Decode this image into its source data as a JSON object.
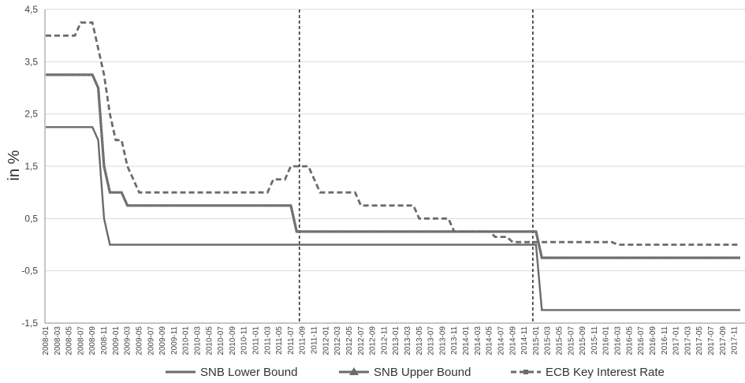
{
  "chart_data": {
    "type": "line",
    "title": "",
    "xlabel": "",
    "ylabel": "in %",
    "ylim": [
      -1.5,
      4.5
    ],
    "yticks": [
      -1.5,
      -0.5,
      0.5,
      1.5,
      2.5,
      3.5,
      4.5
    ],
    "ytick_labels": [
      "-1,5",
      "-0,5",
      "0,5",
      "1,5",
      "2,5",
      "3,5",
      "4,5"
    ],
    "xtick_labels": [
      "2008-01",
      "2008-03",
      "2008-05",
      "2008-07",
      "2008-09",
      "2008-11",
      "2009-01",
      "2009-03",
      "2009-05",
      "2009-07",
      "2009-09",
      "2009-11",
      "2010-01",
      "2010-03",
      "2010-05",
      "2010-07",
      "2010-09",
      "2010-11",
      "2011-01",
      "2011-03",
      "2011-05",
      "2011-07",
      "2011-09",
      "2011-11",
      "2012-01",
      "2012-03",
      "2012-05",
      "2012-07",
      "2012-09",
      "2012-11",
      "2013-01",
      "2013-03",
      "2013-05",
      "2013-07",
      "2013-09",
      "2013-11",
      "2014-01",
      "2014-03",
      "2014-05",
      "2014-07",
      "2014-09",
      "2014-11",
      "2015-01",
      "2015-03",
      "2015-05",
      "2015-07",
      "2015-09",
      "2015-11",
      "2016-01",
      "2016-03",
      "2016-05",
      "2016-07",
      "2016-09",
      "2016-11",
      "2017-01",
      "2017-03",
      "2017-05",
      "2017-07",
      "2017-09",
      "2017-11"
    ],
    "grid": "horizontal",
    "legend_position": "bottom",
    "vertical_markers": [
      "2011-09",
      "2015-01"
    ],
    "series": [
      {
        "name": "SNB Lower Bound",
        "style": "solid",
        "color": "#6b6b6b",
        "points": [
          [
            "2008-01",
            2.25
          ],
          [
            "2008-09",
            2.25
          ],
          [
            "2008-10",
            2.0
          ],
          [
            "2008-11",
            0.5
          ],
          [
            "2008-12",
            0.0
          ],
          [
            "2015-01",
            0.0
          ],
          [
            "2015-02",
            -1.25
          ],
          [
            "2017-12",
            -1.25
          ]
        ]
      },
      {
        "name": "SNB Upper Bound",
        "style": "solid-triangle",
        "color": "#6b6b6b",
        "points": [
          [
            "2008-01",
            3.25
          ],
          [
            "2008-09",
            3.25
          ],
          [
            "2008-10",
            3.0
          ],
          [
            "2008-11",
            1.5
          ],
          [
            "2008-12",
            1.0
          ],
          [
            "2009-02",
            1.0
          ],
          [
            "2009-03",
            0.75
          ],
          [
            "2011-07",
            0.75
          ],
          [
            "2011-08",
            0.25
          ],
          [
            "2015-01",
            0.25
          ],
          [
            "2015-02",
            -0.25
          ],
          [
            "2017-12",
            -0.25
          ]
        ]
      },
      {
        "name": "ECB Key Interest Rate",
        "style": "dashed",
        "color": "#6b6b6b",
        "points": [
          [
            "2008-01",
            4.0
          ],
          [
            "2008-06",
            4.0
          ],
          [
            "2008-07",
            4.25
          ],
          [
            "2008-09",
            4.25
          ],
          [
            "2008-10",
            3.75
          ],
          [
            "2008-11",
            3.25
          ],
          [
            "2008-12",
            2.5
          ],
          [
            "2009-01",
            2.0
          ],
          [
            "2009-02",
            2.0
          ],
          [
            "2009-03",
            1.5
          ],
          [
            "2009-04",
            1.25
          ],
          [
            "2009-05",
            1.0
          ],
          [
            "2011-03",
            1.0
          ],
          [
            "2011-04",
            1.25
          ],
          [
            "2011-06",
            1.25
          ],
          [
            "2011-07",
            1.5
          ],
          [
            "2011-10",
            1.5
          ],
          [
            "2011-11",
            1.25
          ],
          [
            "2011-12",
            1.0
          ],
          [
            "2012-06",
            1.0
          ],
          [
            "2012-07",
            0.75
          ],
          [
            "2013-04",
            0.75
          ],
          [
            "2013-05",
            0.5
          ],
          [
            "2013-10",
            0.5
          ],
          [
            "2013-11",
            0.25
          ],
          [
            "2014-05",
            0.25
          ],
          [
            "2014-06",
            0.15
          ],
          [
            "2014-08",
            0.15
          ],
          [
            "2014-09",
            0.05
          ],
          [
            "2016-02",
            0.05
          ],
          [
            "2016-03",
            0.0
          ],
          [
            "2017-12",
            0.0
          ]
        ]
      }
    ]
  }
}
